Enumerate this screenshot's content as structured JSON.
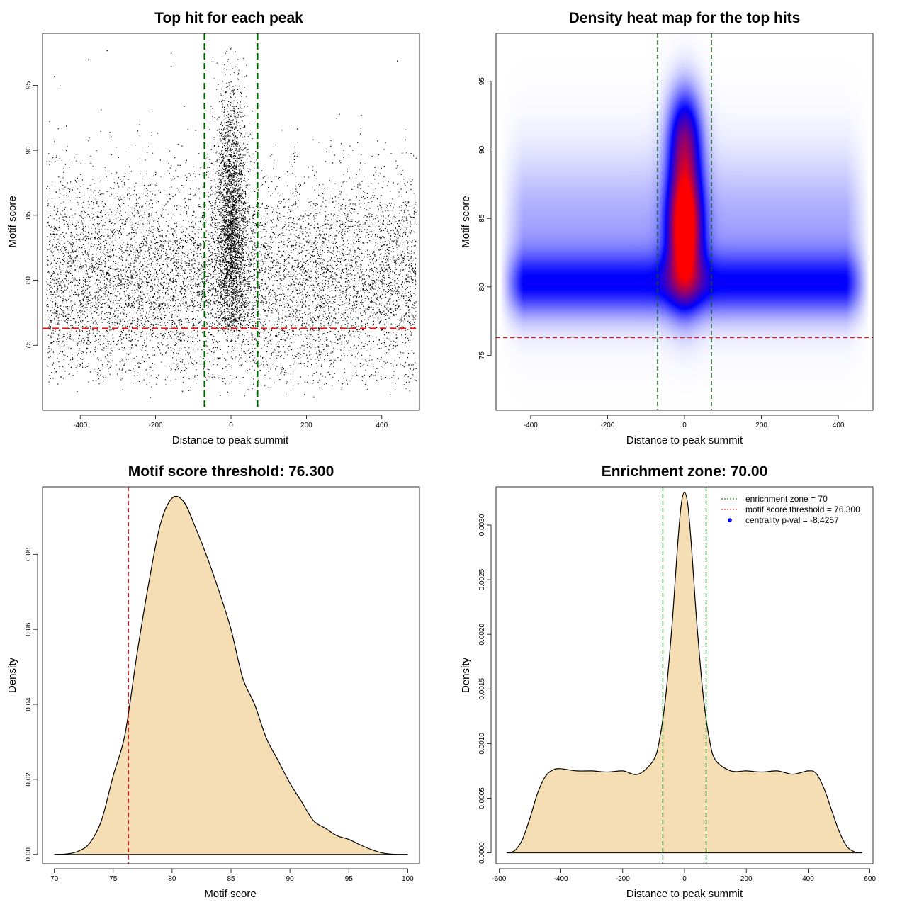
{
  "chart_data": [
    {
      "type": "scatter",
      "title": "Top hit for each peak",
      "xlabel": "Distance to peak summit",
      "ylabel": "Motif score",
      "xlim": [
        -500,
        500
      ],
      "ylim": [
        70,
        99
      ],
      "xticks": [
        -400,
        -200,
        0,
        200,
        400
      ],
      "yticks": [
        75,
        80,
        85,
        90,
        95
      ],
      "background_band": {
        "y_mean": 80,
        "y_sd": 4.2,
        "x_range": [
          -490,
          490
        ]
      },
      "central_cluster": {
        "x_sd": 20,
        "y_mean": 84,
        "y_sd": 5.5,
        "y_max": 98
      },
      "sparse_points": [
        {
          "x": -470,
          "y": 95.7
        },
        {
          "x": -455,
          "y": 95.0
        },
        {
          "x": -380,
          "y": 97.0
        },
        {
          "x": -330,
          "y": 97.7
        },
        {
          "x": -160,
          "y": 97.5
        },
        {
          "x": -160,
          "y": 96.5
        },
        {
          "x": 440,
          "y": 96.9
        },
        {
          "x": -465,
          "y": 73.0
        },
        {
          "x": -340,
          "y": 72.3
        },
        {
          "x": -225,
          "y": 72.0
        },
        {
          "x": -130,
          "y": 71.5
        },
        {
          "x": 195,
          "y": 72.2
        },
        {
          "x": 420,
          "y": 72.5
        }
      ],
      "vlines": [
        -70,
        70
      ],
      "vline_color": "#006400",
      "hline": 76.3,
      "hline_color": "#e31a1c"
    },
    {
      "type": "heatmap",
      "title": "Density heat map for the top hits",
      "xlabel": "Distance to peak summit",
      "ylabel": "Motif score",
      "xlim": [
        -490,
        490
      ],
      "ylim": [
        71,
        98.5
      ],
      "xticks": [
        -400,
        -200,
        0,
        200,
        400
      ],
      "yticks": [
        75,
        80,
        85,
        90,
        95
      ],
      "color_scale": [
        "#ffffff",
        "#0000ff",
        "#ff0000"
      ],
      "vlines": [
        -70,
        70
      ],
      "vline_color": "#006400",
      "hline": 76.3,
      "hline_color": "#e31a1c"
    },
    {
      "type": "area",
      "title": "Motif score threshold: 76.300",
      "xlabel": "Motif score",
      "ylabel": "Density",
      "xlim": [
        69,
        101
      ],
      "ylim": [
        -0.0025,
        0.098
      ],
      "xticks": [
        70,
        75,
        80,
        85,
        90,
        95,
        100
      ],
      "yticks": [
        "0.00",
        "0.02",
        "0.04",
        "0.06",
        "0.08"
      ],
      "x": [
        70,
        71,
        72,
        73,
        74,
        75,
        76,
        77,
        78,
        79,
        80,
        81,
        82,
        83,
        84,
        85,
        86,
        87,
        88,
        89,
        90,
        91,
        92,
        93,
        94,
        95,
        96,
        97,
        98,
        99,
        100
      ],
      "y": [
        0.0,
        0.0001,
        0.0008,
        0.003,
        0.009,
        0.021,
        0.032,
        0.053,
        0.072,
        0.088,
        0.095,
        0.094,
        0.087,
        0.079,
        0.07,
        0.06,
        0.047,
        0.04,
        0.031,
        0.025,
        0.019,
        0.014,
        0.009,
        0.007,
        0.005,
        0.004,
        0.0025,
        0.0012,
        0.0003,
        0.0,
        0.0
      ],
      "fill": "#f5deb3",
      "vline": 76.3,
      "vline_color": "#e31a1c"
    },
    {
      "type": "area",
      "title": "Enrichment zone: 70.00",
      "xlabel": "Distance to peak summit",
      "ylabel": "Density",
      "xlim": [
        -610,
        610
      ],
      "ylim": [
        -0.0001,
        0.00335
      ],
      "xticks": [
        -600,
        -400,
        -200,
        0,
        200,
        400,
        600
      ],
      "yticks": [
        "0.0000",
        "0.0005",
        "0.0010",
        "0.0015",
        "0.0020",
        "0.0025",
        "0.0030"
      ],
      "x": [
        -575,
        -550,
        -525,
        -500,
        -475,
        -450,
        -425,
        -400,
        -350,
        -300,
        -250,
        -200,
        -150,
        -100,
        -80,
        -60,
        -40,
        -30,
        -20,
        -10,
        0,
        10,
        20,
        30,
        40,
        60,
        80,
        100,
        150,
        200,
        250,
        300,
        350,
        400,
        425,
        450,
        475,
        500,
        525,
        550,
        575
      ],
      "y": [
        0.0,
        2e-05,
        0.00012,
        0.00032,
        0.00055,
        0.0007,
        0.00076,
        0.00077,
        0.00075,
        0.00075,
        0.00074,
        0.00075,
        0.00072,
        0.00085,
        0.00105,
        0.00145,
        0.0021,
        0.0025,
        0.0029,
        0.0032,
        0.0033,
        0.0032,
        0.0029,
        0.0025,
        0.0021,
        0.00145,
        0.00105,
        0.00085,
        0.00075,
        0.00075,
        0.00074,
        0.00075,
        0.00072,
        0.00075,
        0.00073,
        0.0006,
        0.0004,
        0.0002,
        6e-05,
        1e-05,
        0.0
      ],
      "fill": "#f5deb3",
      "vlines": [
        -70,
        70
      ],
      "vline_color": "#006400",
      "legend": {
        "placement": "top-right",
        "items": [
          {
            "label": "enrichment zone = 70",
            "color": "#006400",
            "style": "dotted-line"
          },
          {
            "label": "motif score threshold = 76.300",
            "color": "#e31a1c",
            "style": "dotted-line"
          },
          {
            "label": "centrality p-val = -8.4257",
            "color": "#0000ff",
            "style": "point"
          }
        ]
      }
    }
  ]
}
